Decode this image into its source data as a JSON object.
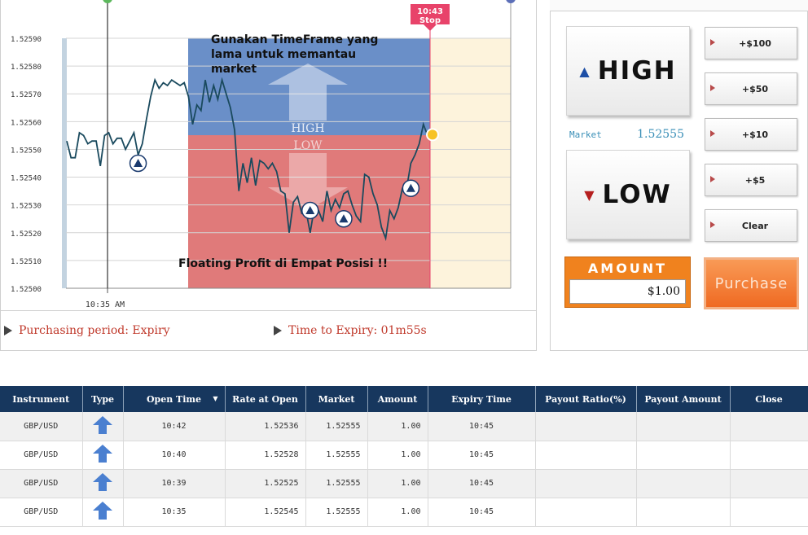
{
  "chart": {
    "y_ticks": [
      "1.52590",
      "1.52580",
      "1.52570",
      "1.52560",
      "1.52550",
      "1.52540",
      "1.52530",
      "1.52520",
      "1.52510",
      "1.52500"
    ],
    "x_label": "10:35 AM",
    "expiry_flag_time": "10:43",
    "expiry_flag_label": "Stop",
    "zone_high_label": "HIGH",
    "zone_low_label": "LOW",
    "colors": {
      "high_zone": "#6a8fc8",
      "low_zone": "#e07a7a",
      "line": "#1a4a5e",
      "after_stop": "#fdf3dc",
      "flag": "#e8436a"
    }
  },
  "chart_data": {
    "type": "line",
    "ylim": [
      1.525,
      1.5259
    ],
    "series": [
      {
        "values": [
          1.52553,
          1.52547,
          1.52547,
          1.52556,
          1.52555,
          1.52552,
          1.52553,
          1.52553,
          1.52544,
          1.52555,
          1.52556,
          1.52552,
          1.52554,
          1.52554,
          1.5255,
          1.52553,
          1.52556,
          1.52548,
          1.52552,
          1.52561,
          1.52569,
          1.52575,
          1.52572,
          1.52574,
          1.52573,
          1.52575,
          1.52574,
          1.52573,
          1.52574,
          1.52569,
          1.52559,
          1.52566,
          1.52564,
          1.52575,
          1.52567,
          1.52573,
          1.52568,
          1.52575,
          1.5257,
          1.52565,
          1.52557,
          1.52535,
          1.52545,
          1.52538,
          1.52547,
          1.52537,
          1.52546,
          1.52545,
          1.52543,
          1.52545,
          1.52542,
          1.52535,
          1.52534,
          1.5252,
          1.52531,
          1.52533,
          1.52527,
          1.52528,
          1.5252,
          1.52529,
          1.52528,
          1.52524,
          1.52535,
          1.52528,
          1.52532,
          1.52529,
          1.52534,
          1.52535,
          1.5253,
          1.52526,
          1.52524,
          1.52541,
          1.5254,
          1.52534,
          1.5253,
          1.52522,
          1.52518,
          1.52528,
          1.52525,
          1.52529,
          1.52536,
          1.52536,
          1.52545,
          1.52548,
          1.52552,
          1.52559,
          1.52555
        ]
      }
    ],
    "markers": [
      1.52545,
      1.52528,
      1.52525,
      1.52536
    ],
    "expiry_rate": 1.52555
  },
  "notes": {
    "top": "Gunakan TimeFrame yang lama untuk memantau market",
    "bottom": "Floating Profit di Empat Posisi !!"
  },
  "status": {
    "purchasing_period": "Purchasing period: Expiry",
    "time_to_expiry": "Time to Expiry: 01m55s"
  },
  "trade": {
    "high_label": "HIGH",
    "low_label": "LOW",
    "market_label": "Market",
    "market_value": "1.52555",
    "amount_buttons": [
      "+$100",
      "+$50",
      "+$10",
      "+$5",
      "Clear"
    ],
    "amount_title": "AMOUNT",
    "amount_value": "$1.00",
    "purchase_label": "Purchase"
  },
  "table": {
    "headers": [
      "Instrument",
      "Type",
      "Open Time",
      "Rate at Open",
      "Market",
      "Amount",
      "Expiry Time",
      "Payout Ratio(%)",
      "Payout Amount",
      "Close"
    ],
    "rows": [
      {
        "instrument": "GBP/USD",
        "open_time": "10:42",
        "rate": "1.52536",
        "market": "1.52555",
        "amount": "1.00",
        "expiry": "10:45"
      },
      {
        "instrument": "GBP/USD",
        "open_time": "10:40",
        "rate": "1.52528",
        "market": "1.52555",
        "amount": "1.00",
        "expiry": "10:45"
      },
      {
        "instrument": "GBP/USD",
        "open_time": "10:39",
        "rate": "1.52525",
        "market": "1.52555",
        "amount": "1.00",
        "expiry": "10:45"
      },
      {
        "instrument": "GBP/USD",
        "open_time": "10:35",
        "rate": "1.52545",
        "market": "1.52555",
        "amount": "1.00",
        "expiry": "10:45"
      }
    ]
  }
}
